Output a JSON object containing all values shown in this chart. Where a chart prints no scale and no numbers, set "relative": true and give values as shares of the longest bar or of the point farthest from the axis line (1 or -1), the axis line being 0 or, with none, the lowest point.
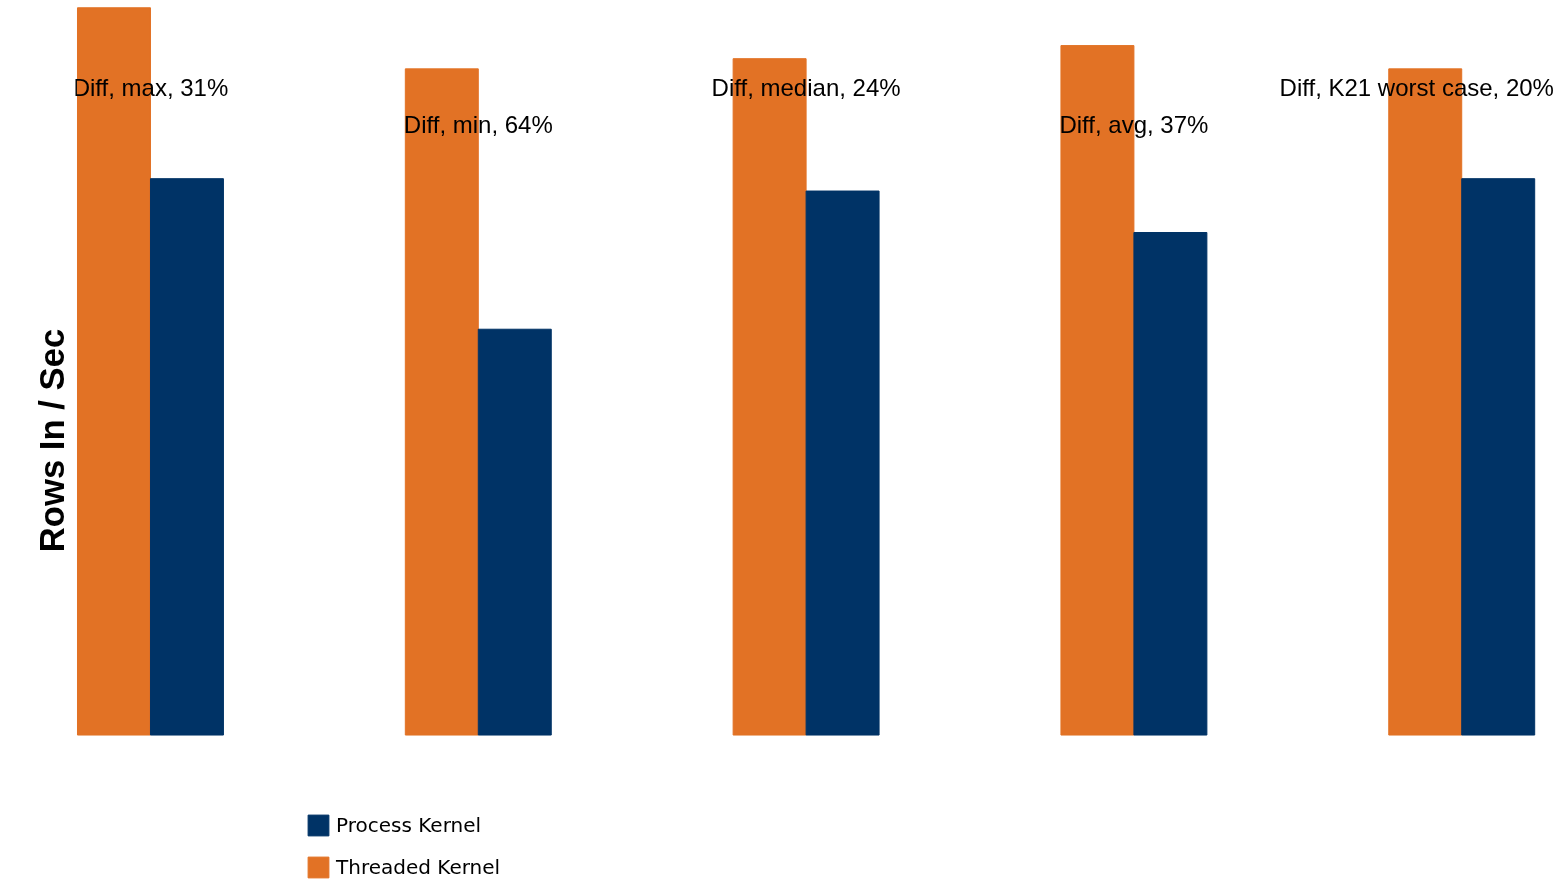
{
  "chart_data": {
    "type": "bar",
    "relative": true,
    "ylabel": "Rows In / Sec",
    "categories": [
      null,
      null,
      null,
      null,
      null
    ],
    "legend": "bottom",
    "series": [
      {
        "name": "Threaded Kernel",
        "color": "#e27225",
        "values": [
          1.0,
          0.916,
          0.93,
          0.948,
          0.916
        ]
      },
      {
        "name": "Process Kernel",
        "color": "#003366",
        "values": [
          0.765,
          0.558,
          0.748,
          0.691,
          0.765
        ]
      }
    ],
    "annotations": [
      "Diff, max, 31%",
      "Diff, min, 64%",
      "Diff, median, 24%",
      "Diff, avg, 37%",
      "Diff, K21 worst case, 20%"
    ]
  }
}
